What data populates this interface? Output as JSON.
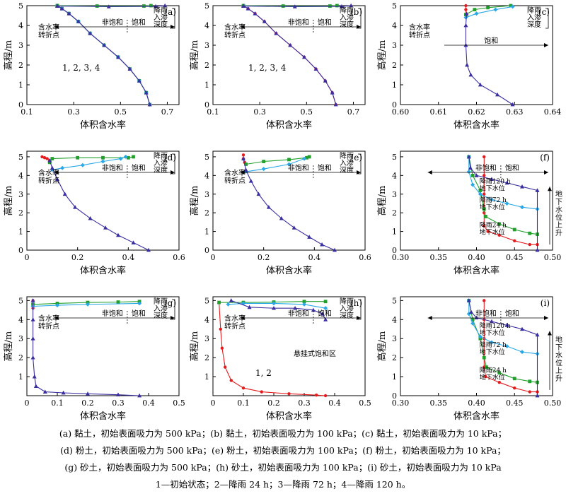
{
  "axis_labels": {
    "x": "体积含水率",
    "y": "高程/m"
  },
  "series_colors": [
    "#e41a1c",
    "#22a02c",
    "#29a8e8",
    "#3a2fa0"
  ],
  "chart_data": [
    {
      "id": "a",
      "type": "line",
      "tag": "(a)",
      "xlim": [
        0.1,
        0.75
      ],
      "ylim": [
        0,
        5
      ],
      "xticks": [
        "0.1",
        "0.3",
        "0.5",
        "0.7"
      ],
      "xtick_values": [
        0.1,
        0.3,
        0.5,
        0.7
      ],
      "yticks": [
        "0",
        "1",
        "2",
        "3",
        "4",
        "5"
      ],
      "curve_label": "1, 2, 3, 4",
      "turn_label": "含水率\n转折点",
      "infil_label": "降雨\n入渗\n深度",
      "unsat_label": "非饱和",
      "sat_label": "饱和",
      "series": [
        {
          "name": "1",
          "x": [
            0.23,
            0.25,
            0.28,
            0.32,
            0.37,
            0.43,
            0.49,
            0.54,
            0.58,
            0.61,
            0.625
          ],
          "y": [
            5.0,
            4.85,
            4.6,
            4.2,
            3.6,
            3.0,
            2.4,
            1.8,
            1.2,
            0.6,
            0.0
          ]
        },
        {
          "name": "2",
          "x": [
            0.23,
            0.25,
            0.28,
            0.32,
            0.37,
            0.43,
            0.49,
            0.54,
            0.58,
            0.61,
            0.625
          ],
          "y": [
            5.0,
            4.85,
            4.6,
            4.2,
            3.6,
            3.0,
            2.4,
            1.8,
            1.2,
            0.6,
            0.0
          ]
        },
        {
          "name": "3",
          "x": [
            0.23,
            0.25,
            0.28,
            0.32,
            0.37,
            0.43,
            0.49,
            0.54,
            0.58,
            0.61,
            0.625
          ],
          "y": [
            5.0,
            4.85,
            4.6,
            4.2,
            3.6,
            3.0,
            2.4,
            1.8,
            1.2,
            0.6,
            0.0
          ]
        },
        {
          "name": "4",
          "x": [
            0.23,
            0.25,
            0.28,
            0.32,
            0.37,
            0.43,
            0.49,
            0.54,
            0.58,
            0.61,
            0.625
          ],
          "y": [
            5.0,
            4.85,
            4.6,
            4.2,
            3.6,
            3.0,
            2.4,
            1.8,
            1.2,
            0.6,
            0.0
          ]
        },
        {
          "name": "2-infil",
          "x": [
            0.23,
            0.4,
            0.6,
            0.63
          ],
          "y": [
            5.0,
            4.98,
            4.98,
            5.0
          ]
        },
        {
          "name": "4-infil",
          "x": [
            0.23,
            0.45,
            0.65,
            0.69
          ],
          "y": [
            4.98,
            4.95,
            4.96,
            5.0
          ]
        }
      ]
    },
    {
      "id": "b",
      "type": "line",
      "tag": "(b)",
      "xlim": [
        0.1,
        0.75
      ],
      "ylim": [
        0,
        5
      ],
      "xticks": [
        "0.1",
        "0.3",
        "0.5",
        "0.7"
      ],
      "xtick_values": [
        0.1,
        0.3,
        0.5,
        0.7
      ],
      "yticks": [
        "0",
        "1",
        "2",
        "3",
        "4",
        "5"
      ],
      "curve_label": "1, 2, 3, 4",
      "turn_label": "含水率\n转折点",
      "infil_label": "降雨\n入渗\n深度",
      "unsat_label": "非饱和",
      "sat_label": "饱和",
      "series": [
        {
          "name": "1",
          "x": [
            0.23,
            0.25,
            0.28,
            0.32,
            0.37,
            0.43,
            0.49,
            0.54,
            0.58,
            0.61,
            0.625
          ],
          "y": [
            5.0,
            4.85,
            4.6,
            4.2,
            3.6,
            3.0,
            2.4,
            1.8,
            1.2,
            0.6,
            0.0
          ]
        },
        {
          "name": "4",
          "x": [
            0.23,
            0.25,
            0.28,
            0.32,
            0.37,
            0.43,
            0.49,
            0.54,
            0.58,
            0.61,
            0.625
          ],
          "y": [
            5.0,
            4.85,
            4.6,
            4.2,
            3.6,
            3.0,
            2.4,
            1.8,
            1.2,
            0.6,
            0.0
          ]
        },
        {
          "name": "2-infil",
          "x": [
            0.23,
            0.4,
            0.6,
            0.63
          ],
          "y": [
            5.0,
            4.98,
            4.98,
            5.0
          ]
        },
        {
          "name": "4-infil",
          "x": [
            0.23,
            0.45,
            0.65,
            0.69
          ],
          "y": [
            4.98,
            4.95,
            4.96,
            5.0
          ]
        }
      ]
    },
    {
      "id": "c",
      "type": "line",
      "tag": "(c)",
      "xlim": [
        0.6,
        0.64
      ],
      "ylim": [
        0,
        5
      ],
      "xticks": [
        "0.60",
        "0.61",
        "0.62",
        "0.63",
        "0.64"
      ],
      "xtick_values": [
        0.6,
        0.61,
        0.62,
        0.63,
        0.64
      ],
      "yticks": [
        "0",
        "1",
        "2",
        "3",
        "4",
        "5"
      ],
      "turn_label": "含水率\n转折点",
      "infil_label": "降雨\n入渗\n深度",
      "sat_label": "饱和",
      "series": [
        {
          "name": "1",
          "x": [
            0.6172,
            0.6172,
            0.6173
          ],
          "y": [
            5.0,
            4.8,
            4.5
          ]
        },
        {
          "name": "2",
          "x": [
            0.6172,
            0.6195,
            0.623,
            0.629
          ],
          "y": [
            4.55,
            4.8,
            4.9,
            5.0
          ]
        },
        {
          "name": "3",
          "x": [
            0.6172,
            0.62,
            0.625,
            0.6295
          ],
          "y": [
            4.4,
            4.6,
            4.8,
            4.95
          ]
        },
        {
          "name": "4",
          "x": [
            0.6174,
            0.6172,
            0.6172,
            0.6175,
            0.6185,
            0.621,
            0.6255,
            0.6295
          ],
          "y": [
            4.6,
            4.0,
            3.0,
            2.0,
            1.5,
            1.0,
            0.5,
            0.0
          ]
        }
      ]
    },
    {
      "id": "d",
      "type": "line",
      "tag": "(d)",
      "xlim": [
        0,
        0.6
      ],
      "ylim": [
        0,
        5.3
      ],
      "xticks": [
        "0",
        "0.2",
        "0.4",
        "0.6"
      ],
      "xtick_values": [
        0,
        0.2,
        0.4,
        0.6
      ],
      "yticks": [
        "0",
        "1",
        "2",
        "3",
        "4",
        "5"
      ],
      "turn_label": "含水率\n转折点",
      "infil_label": "降雨\n入渗\n深度",
      "unsat_label": "非饱和",
      "sat_label": "饱和",
      "series": [
        {
          "name": "1",
          "x": [
            0.06,
            0.07,
            0.08,
            0.09
          ],
          "y": [
            5.0,
            4.95,
            4.9,
            4.8
          ]
        },
        {
          "name": "2",
          "x": [
            0.09,
            0.1,
            0.2,
            0.3,
            0.4,
            0.42
          ],
          "y": [
            4.7,
            4.9,
            4.95,
            4.95,
            4.95,
            5.0
          ]
        },
        {
          "name": "3",
          "x": [
            0.1,
            0.14,
            0.22,
            0.3,
            0.37,
            0.39
          ],
          "y": [
            4.3,
            4.4,
            4.55,
            4.75,
            4.9,
            5.0
          ]
        },
        {
          "name": "4",
          "x": [
            0.09,
            0.1,
            0.12,
            0.15,
            0.19,
            0.25,
            0.31,
            0.36,
            0.42,
            0.48
          ],
          "y": [
            4.8,
            4.4,
            3.8,
            3.0,
            2.3,
            1.7,
            1.2,
            0.8,
            0.4,
            0.0
          ]
        }
      ]
    },
    {
      "id": "e",
      "type": "line",
      "tag": "(e)",
      "xlim": [
        0,
        0.6
      ],
      "ylim": [
        0,
        5.3
      ],
      "xticks": [
        "0",
        "0.2",
        "0.4",
        "0.6"
      ],
      "xtick_values": [
        0,
        0.2,
        0.4,
        0.6
      ],
      "yticks": [
        "0",
        "1",
        "2",
        "3",
        "4",
        "5"
      ],
      "turn_label": "含水率\n转折点",
      "infil_label": "降雨\n入渗\n深度",
      "unsat_label": "非饱和",
      "sat_label": "饱和",
      "series": [
        {
          "name": "1",
          "x": [
            0.12,
            0.12,
            0.125
          ],
          "y": [
            5.1,
            4.9,
            4.7
          ]
        },
        {
          "name": "2",
          "x": [
            0.13,
            0.2,
            0.3,
            0.37,
            0.38
          ],
          "y": [
            4.6,
            4.75,
            4.85,
            4.95,
            5.0
          ]
        },
        {
          "name": "3",
          "x": [
            0.13,
            0.2,
            0.3,
            0.36
          ],
          "y": [
            4.2,
            4.35,
            4.6,
            4.9
          ]
        },
        {
          "name": "4",
          "x": [
            0.12,
            0.13,
            0.15,
            0.18,
            0.22,
            0.27,
            0.32,
            0.38,
            0.43,
            0.48
          ],
          "y": [
            4.9,
            4.3,
            3.7,
            3.0,
            2.3,
            1.7,
            1.2,
            0.7,
            0.3,
            0.0
          ]
        }
      ]
    },
    {
      "id": "f",
      "type": "line",
      "tag": "(f)",
      "xlim": [
        0.3,
        0.5
      ],
      "ylim": [
        0,
        5.3
      ],
      "xticks": [
        "0.30",
        "0.35",
        "0.40",
        "0.45",
        "0.50"
      ],
      "xtick_values": [
        0.3,
        0.35,
        0.4,
        0.45,
        0.5
      ],
      "yticks": [
        "0",
        "1",
        "2",
        "3",
        "4",
        "5"
      ],
      "unsat_label": "非饱和",
      "sat_label": "饱和",
      "wt_labels": [
        "降雨120 h\n地下水位",
        "降雨72 h\n地下水位",
        "降雨24 h\n地下水位"
      ],
      "rise_label": "地\n下\n水\n位\n上\n升",
      "series": [
        {
          "name": "1",
          "x": [
            0.41,
            0.41,
            0.41,
            0.41,
            0.41,
            0.415,
            0.43,
            0.45,
            0.47,
            0.48
          ],
          "y": [
            5.0,
            4.0,
            3.0,
            2.0,
            1.3,
            1.0,
            0.8,
            0.5,
            0.3,
            0.3
          ]
        },
        {
          "name": "2",
          "x": [
            0.39,
            0.395,
            0.405,
            0.41,
            0.412,
            0.43,
            0.45,
            0.47,
            0.48
          ],
          "y": [
            5.0,
            4.0,
            3.2,
            2.2,
            1.8,
            1.4,
            1.1,
            0.9,
            0.85
          ]
        },
        {
          "name": "3",
          "x": [
            0.39,
            0.39,
            0.395,
            0.405,
            0.42,
            0.44,
            0.46,
            0.48
          ],
          "y": [
            5.0,
            4.2,
            3.5,
            3.0,
            2.7,
            2.5,
            2.3,
            2.2
          ]
        },
        {
          "name": "4",
          "x": [
            0.39,
            0.392,
            0.4,
            0.42,
            0.44,
            0.46,
            0.48,
            0.48
          ],
          "y": [
            5.0,
            4.4,
            4.0,
            3.8,
            3.6,
            3.4,
            3.2,
            0.0
          ]
        }
      ]
    },
    {
      "id": "g",
      "type": "line",
      "tag": "(g)",
      "xlim": [
        0,
        0.5
      ],
      "ylim": [
        0,
        5.2
      ],
      "xticks": [
        "0",
        "0.1",
        "0.2",
        "0.3",
        "0.4",
        "0.5"
      ],
      "xtick_values": [
        0,
        0.1,
        0.2,
        0.3,
        0.4,
        0.5
      ],
      "yticks": [
        "1",
        "2",
        "3",
        "4",
        "5"
      ],
      "turn_label": "含水率\n转折点",
      "infil_label": "降雨\n入渗\n深度",
      "unsat_label": "非饱和",
      "sat_label": "饱和",
      "series": [
        {
          "name": "1",
          "x": [
            0.02,
            0.02,
            0.02
          ],
          "y": [
            5.0,
            4.8,
            4.6
          ]
        },
        {
          "name": "2",
          "x": [
            0.02,
            0.1,
            0.2,
            0.3,
            0.37
          ],
          "y": [
            4.8,
            4.85,
            4.9,
            4.92,
            4.95
          ]
        },
        {
          "name": "3",
          "x": [
            0.02,
            0.1,
            0.2,
            0.37
          ],
          "y": [
            4.7,
            4.75,
            4.8,
            4.85
          ]
        },
        {
          "name": "4",
          "x": [
            0.02,
            0.02,
            0.02,
            0.02,
            0.025,
            0.03,
            0.06,
            0.12,
            0.2,
            0.3,
            0.37
          ],
          "y": [
            5.0,
            4.0,
            3.0,
            2.0,
            1.0,
            0.5,
            0.2,
            0.15,
            0.1,
            0.05,
            0.0
          ]
        }
      ]
    },
    {
      "id": "h",
      "type": "line",
      "tag": "(h)",
      "xlim": [
        0,
        0.5
      ],
      "ylim": [
        0,
        5.2
      ],
      "xticks": [
        "0",
        "0.1",
        "0.2",
        "0.3",
        "0.4",
        "0.5"
      ],
      "xtick_values": [
        0,
        0.1,
        0.2,
        0.3,
        0.4,
        0.5
      ],
      "yticks": [
        "1",
        "2",
        "3",
        "4",
        "5"
      ],
      "turn_label": "含水率\n转折点",
      "infil_label": "降雨\n入渗\n深度",
      "unsat_label": "非饱和",
      "sat_label": "饱和",
      "curve_label": "1, 2",
      "hang_label": "悬挂式饱和区",
      "series": [
        {
          "name": "1",
          "x": [
            0.02,
            0.025,
            0.03,
            0.04,
            0.06,
            0.1,
            0.16,
            0.25,
            0.34,
            0.37
          ],
          "y": [
            4.9,
            3.5,
            2.5,
            1.5,
            0.8,
            0.4,
            0.2,
            0.1,
            0.03,
            0.0
          ]
        },
        {
          "name": "2",
          "x": [
            0.02,
            0.1,
            0.2,
            0.3,
            0.37
          ],
          "y": [
            4.9,
            4.9,
            4.92,
            4.95,
            4.95
          ]
        },
        {
          "name": "3",
          "x": [
            0.05,
            0.1,
            0.2,
            0.3,
            0.37
          ],
          "y": [
            4.8,
            4.85,
            4.85,
            4.8,
            4.6
          ]
        },
        {
          "name": "4",
          "x": [
            0.06,
            0.12,
            0.2,
            0.27,
            0.33,
            0.36,
            0.37
          ],
          "y": [
            5.0,
            4.65,
            4.6,
            4.6,
            4.5,
            4.3,
            4.0
          ]
        }
      ]
    },
    {
      "id": "i",
      "type": "line",
      "tag": "(i)",
      "xlim": [
        0.3,
        0.5
      ],
      "ylim": [
        0,
        5.2
      ],
      "xticks": [
        "0.30",
        "0.35",
        "0.40",
        "0.45",
        "0.50"
      ],
      "xtick_values": [
        0.3,
        0.35,
        0.4,
        0.45,
        0.5
      ],
      "yticks": [
        "0",
        "1",
        "2",
        "3",
        "4",
        "5"
      ],
      "unsat_label": "非饱和",
      "sat_label": "饱和",
      "wt_labels": [
        "降雨120 h\n地下水位",
        "降雨72 h\n地下水位",
        "降雨24 h\n地下水位"
      ],
      "rise_label": "地\n下\n水\n位\n上\n升",
      "series": [
        {
          "name": "1",
          "x": [
            0.41,
            0.41,
            0.41,
            0.41,
            0.412,
            0.43,
            0.45,
            0.47,
            0.48
          ],
          "y": [
            5.0,
            4.0,
            3.0,
            1.5,
            1.0,
            0.7,
            0.4,
            0.2,
            0.2
          ]
        },
        {
          "name": "2",
          "x": [
            0.39,
            0.395,
            0.405,
            0.41,
            0.413,
            0.43,
            0.45,
            0.47,
            0.48
          ],
          "y": [
            5.0,
            4.0,
            3.0,
            2.0,
            1.5,
            1.2,
            0.9,
            0.75,
            0.7
          ]
        },
        {
          "name": "3",
          "x": [
            0.39,
            0.39,
            0.395,
            0.405,
            0.42,
            0.44,
            0.46,
            0.48
          ],
          "y": [
            5.0,
            4.3,
            3.8,
            3.1,
            2.8,
            2.6,
            2.3,
            2.2
          ]
        },
        {
          "name": "4",
          "x": [
            0.39,
            0.393,
            0.4,
            0.42,
            0.44,
            0.46,
            0.48,
            0.48
          ],
          "y": [
            5.0,
            4.4,
            4.1,
            3.9,
            3.7,
            3.5,
            3.2,
            0.0
          ]
        }
      ]
    }
  ],
  "captions": {
    "line1": "(a)  黏土，初始表面吸力为 500 kPa；(b)  黏土，初始表面吸力为 100 kPa；(c)  黏土，初始表面吸力为 10 kPa；",
    "line2": "(d)  粉土，初始表面吸力为 500 kPa；(e)  粉土，初始表面吸力为 100 kPa；(f)  粉土，初始表面吸力为 10 kPa；",
    "line3": "(g)  砂土，初始表面吸力为 500 kPa；(h)  砂土，初始表面吸力为 100 kPa；(i)  砂土，初始表面吸力为 10 kPa",
    "line4": "1—初始状态；2—降雨 24 h；3—降雨 72 h；4—降雨 120 h。"
  }
}
